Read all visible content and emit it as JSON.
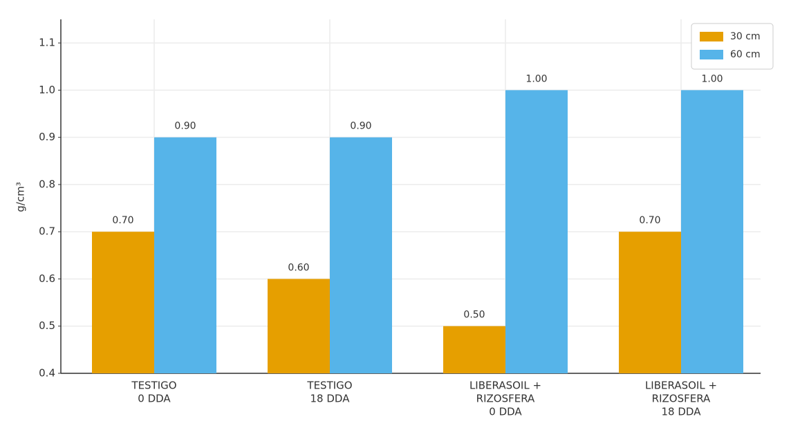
{
  "chart_data": {
    "type": "bar",
    "y_label": "g/cm³",
    "categories": [
      [
        "TESTIGO",
        "0 DDA"
      ],
      [
        "TESTIGO",
        "18 DDA"
      ],
      [
        "LIBERASOIL +",
        "RIZOSFERA",
        "0 DDA"
      ],
      [
        "LIBERASOIL +",
        "RIZOSFERA",
        "18 DDA"
      ]
    ],
    "series": [
      {
        "name": "30 cm",
        "color": "#e69f00",
        "values": [
          0.7,
          0.6,
          0.5,
          0.7
        ],
        "value_labels": [
          "0.70",
          "0.60",
          "0.50",
          "0.70"
        ]
      },
      {
        "name": "60 cm",
        "color": "#56b4e9",
        "values": [
          0.9,
          0.9,
          1,
          1
        ],
        "value_labels": [
          "0.90",
          "0.90",
          "1.00",
          "1.00"
        ]
      }
    ],
    "ylim": [
      0.4,
      1.15
    ],
    "yticks": [
      0.4,
      0.5,
      0.6,
      0.7,
      0.8,
      0.9,
      {
        "value": 1,
        "label": "1.0"
      },
      1.1
    ],
    "grid": true,
    "legend": "upper right"
  }
}
